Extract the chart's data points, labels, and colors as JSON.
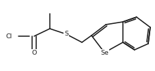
{
  "bg_color": "#ffffff",
  "line_color": "#1a1a1a",
  "line_width": 1.15,
  "font_size": 6.8,
  "figsize": [
    2.27,
    1.04
  ],
  "dpi": 100,
  "xlim": [
    0,
    227
  ],
  "ylim": [
    0,
    104
  ]
}
